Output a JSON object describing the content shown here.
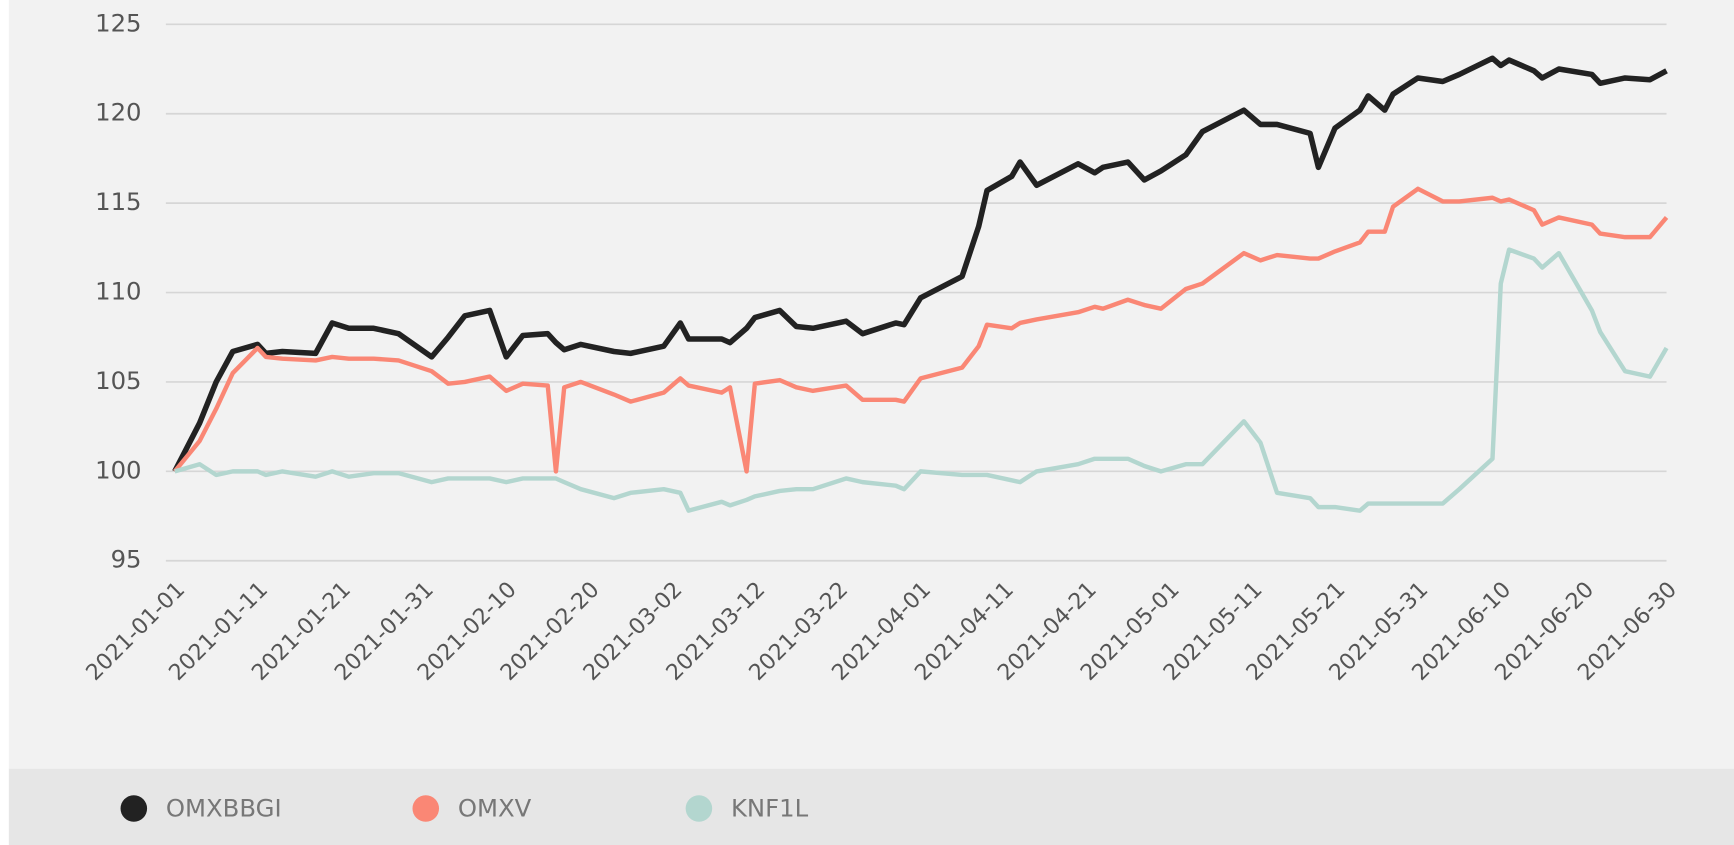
{
  "chart_data": {
    "type": "line",
    "x": [
      "2021-01-01",
      "2021-01-04",
      "2021-01-06",
      "2021-01-08",
      "2021-01-11",
      "2021-01-12",
      "2021-01-14",
      "2021-01-18",
      "2021-01-20",
      "2021-01-22",
      "2021-01-25",
      "2021-01-28",
      "2021-02-01",
      "2021-02-03",
      "2021-02-05",
      "2021-02-08",
      "2021-02-10",
      "2021-02-12",
      "2021-02-15",
      "2021-02-16",
      "2021-02-17",
      "2021-02-19",
      "2021-02-23",
      "2021-02-25",
      "2021-03-01",
      "2021-03-03",
      "2021-03-04",
      "2021-03-08",
      "2021-03-09",
      "2021-03-11",
      "2021-03-12",
      "2021-03-15",
      "2021-03-17",
      "2021-03-19",
      "2021-03-23",
      "2021-03-25",
      "2021-03-29",
      "2021-03-30",
      "2021-04-01",
      "2021-04-06",
      "2021-04-08",
      "2021-04-09",
      "2021-04-12",
      "2021-04-13",
      "2021-04-15",
      "2021-04-20",
      "2021-04-22",
      "2021-04-23",
      "2021-04-26",
      "2021-04-28",
      "2021-04-30",
      "2021-05-03",
      "2021-05-05",
      "2021-05-10",
      "2021-05-12",
      "2021-05-14",
      "2021-05-18",
      "2021-05-19",
      "2021-05-21",
      "2021-05-24",
      "2021-05-25",
      "2021-05-27",
      "2021-05-28",
      "2021-05-31",
      "2021-06-03",
      "2021-06-05",
      "2021-06-09",
      "2021-06-10",
      "2021-06-11",
      "2021-06-14",
      "2021-06-15",
      "2021-06-17",
      "2021-06-21",
      "2021-06-22",
      "2021-06-25",
      "2021-06-28",
      "2021-06-30"
    ],
    "series": [
      {
        "name": "OMXBBGI",
        "color": "#222222",
        "values": [
          100,
          102.7,
          105.0,
          106.7,
          107.1,
          106.6,
          106.7,
          106.6,
          108.3,
          108.0,
          108.0,
          107.7,
          106.4,
          107.5,
          108.7,
          109.0,
          106.4,
          107.6,
          107.7,
          107.2,
          106.8,
          107.1,
          106.7,
          106.6,
          107.0,
          108.3,
          107.4,
          107.4,
          107.2,
          108.0,
          108.6,
          109.0,
          108.1,
          108.0,
          108.4,
          107.7,
          108.3,
          108.2,
          109.7,
          110.9,
          113.7,
          115.7,
          116.5,
          117.3,
          116.0,
          117.2,
          116.7,
          117.0,
          117.3,
          116.3,
          116.8,
          117.7,
          119.0,
          120.2,
          119.4,
          119.4,
          118.9,
          117.0,
          119.2,
          120.2,
          121.0,
          120.2,
          121.1,
          122.0,
          121.8,
          122.2,
          123.1,
          122.7,
          123.0,
          122.4,
          122.0,
          122.5,
          122.2,
          121.7,
          122.0,
          121.9,
          122.4
        ]
      },
      {
        "name": "OMXV",
        "color": "#fa8775",
        "values": [
          100,
          101.7,
          103.5,
          105.5,
          106.9,
          106.4,
          106.3,
          106.2,
          106.4,
          106.3,
          106.3,
          106.2,
          105.6,
          104.9,
          105.0,
          105.3,
          104.5,
          104.9,
          104.8,
          100,
          104.7,
          105.0,
          104.3,
          103.9,
          104.4,
          105.2,
          104.8,
          104.4,
          104.7,
          100,
          104.9,
          105.1,
          104.7,
          104.5,
          104.8,
          104.0,
          104.0,
          103.9,
          105.2,
          105.8,
          107.0,
          108.2,
          108.0,
          108.3,
          108.5,
          108.9,
          109.2,
          109.1,
          109.6,
          109.3,
          109.1,
          110.2,
          110.5,
          112.2,
          111.8,
          112.1,
          111.9,
          111.9,
          112.3,
          112.8,
          113.4,
          113.4,
          114.8,
          115.8,
          115.1,
          115.1,
          115.3,
          115.1,
          115.2,
          114.6,
          113.8,
          114.2,
          113.8,
          113.3,
          113.1,
          113.1,
          114.2
        ]
      },
      {
        "name": "KNF1L",
        "color": "#b3d6cf",
        "values": [
          100,
          100.4,
          99.8,
          100.0,
          100.0,
          99.8,
          100.0,
          99.7,
          100.0,
          99.7,
          99.9,
          99.9,
          99.4,
          99.6,
          99.6,
          99.6,
          99.4,
          99.6,
          99.6,
          99.6,
          99.4,
          99.0,
          98.5,
          98.8,
          99.0,
          98.8,
          97.8,
          98.3,
          98.1,
          98.4,
          98.6,
          98.9,
          99.0,
          99.0,
          99.6,
          99.4,
          99.2,
          99.0,
          100.0,
          99.8,
          99.8,
          99.8,
          99.5,
          99.4,
          100.0,
          100.4,
          100.7,
          100.7,
          100.7,
          100.3,
          100.0,
          100.4,
          100.4,
          102.8,
          101.6,
          98.8,
          98.5,
          98.0,
          98.0,
          97.8,
          98.2,
          98.2,
          98.2,
          98.2,
          98.2,
          99.0,
          100.7,
          110.5,
          112.4,
          111.9,
          111.4,
          112.2,
          109.0,
          107.8,
          105.6,
          105.3,
          106.9
        ]
      }
    ],
    "xlim": [
      "2021-01-01",
      "2021-06-30"
    ],
    "xticks": [
      "2021-01-01",
      "2021-01-11",
      "2021-01-21",
      "2021-01-31",
      "2021-02-10",
      "2021-02-20",
      "2021-03-02",
      "2021-03-12",
      "2021-03-22",
      "2021-04-01",
      "2021-04-11",
      "2021-04-21",
      "2021-05-01",
      "2021-05-11",
      "2021-05-21",
      "2021-05-31",
      "2021-06-10",
      "2021-06-20",
      "2021-06-30"
    ],
    "ylim": [
      95,
      125
    ],
    "yticks": [
      95,
      100,
      105,
      110,
      115,
      120,
      125
    ],
    "grid": true,
    "legend": "bottom"
  }
}
